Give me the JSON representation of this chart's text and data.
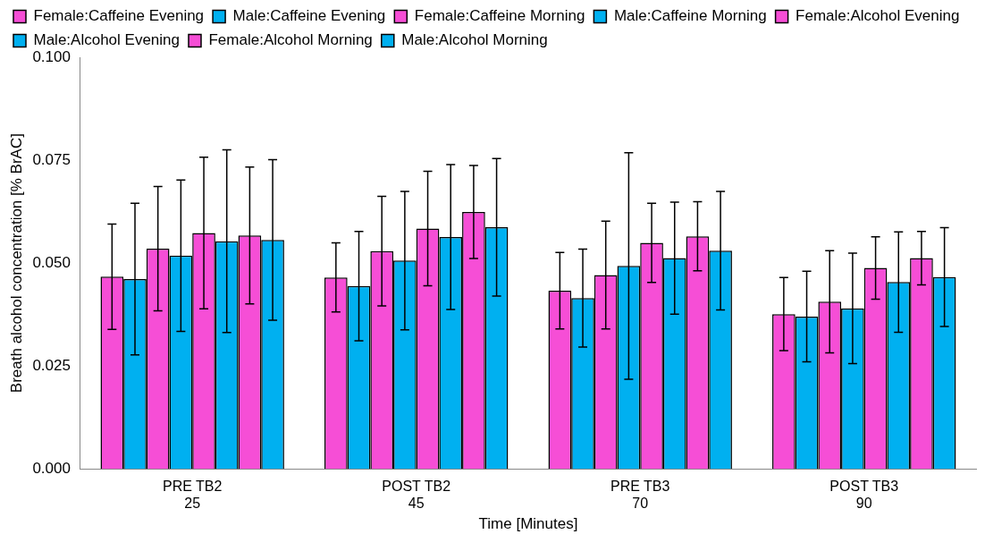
{
  "chart_data": {
    "type": "bar",
    "xlabel": "Time [Minutes]",
    "ylabel": "Breath alcohol concentration [% BrAC]",
    "categories": [
      "PRE TB2\n25",
      "POST TB2\n45",
      "PRE TB3\n70",
      "POST TB3\n90"
    ],
    "ylim": [
      0,
      0.1
    ],
    "yticks": [
      {
        "value": 0,
        "label": "0.000"
      },
      {
        "value": 0.025,
        "label": "0.025"
      },
      {
        "value": 0.05,
        "label": "0.050"
      },
      {
        "value": 0.075,
        "label": "0.075"
      },
      {
        "value": 0.1,
        "label": "0.100"
      }
    ],
    "grid": false,
    "legend": "top",
    "series": [
      {
        "name": "Female:Caffeine Evening",
        "color": "#f64ed6",
        "values": [
          0.0467,
          0.0465,
          0.0433,
          0.0376
        ],
        "errors": [
          0.0128,
          0.0084,
          0.0093,
          0.0089
        ]
      },
      {
        "name": "Male:Caffeine Evening",
        "color": "#00b0f0",
        "values": [
          0.0461,
          0.0444,
          0.0415,
          0.037
        ],
        "errors": [
          0.0184,
          0.0133,
          0.0119,
          0.011
        ]
      },
      {
        "name": "Female:Caffeine Morning",
        "color": "#f64ed6",
        "values": [
          0.0535,
          0.0529,
          0.0471,
          0.0406
        ],
        "errors": [
          0.0151,
          0.0133,
          0.0131,
          0.0124
        ]
      },
      {
        "name": "Male:Caffeine Morning",
        "color": "#00b0f0",
        "values": [
          0.0518,
          0.0506,
          0.0493,
          0.039
        ],
        "errors": [
          0.0184,
          0.0168,
          0.0275,
          0.0134
        ]
      },
      {
        "name": "Female:Alcohol Evening",
        "color": "#f64ed6",
        "values": [
          0.0573,
          0.0584,
          0.0549,
          0.0488
        ],
        "errors": [
          0.0184,
          0.0139,
          0.0096,
          0.0076
        ]
      },
      {
        "name": "Male:Alcohol Evening",
        "color": "#00b0f0",
        "values": [
          0.0553,
          0.0563,
          0.0512,
          0.0454
        ],
        "errors": [
          0.0222,
          0.0176,
          0.0136,
          0.0122
        ]
      },
      {
        "name": "Female:Alcohol Morning",
        "color": "#f64ed6",
        "values": [
          0.0567,
          0.0624,
          0.0565,
          0.0512
        ],
        "errors": [
          0.0166,
          0.0113,
          0.0084,
          0.0065
        ]
      },
      {
        "name": "Male:Alcohol Morning",
        "color": "#00b0f0",
        "values": [
          0.0556,
          0.0587,
          0.053,
          0.0466
        ],
        "errors": [
          0.0195,
          0.0167,
          0.0144,
          0.012
        ]
      }
    ]
  }
}
